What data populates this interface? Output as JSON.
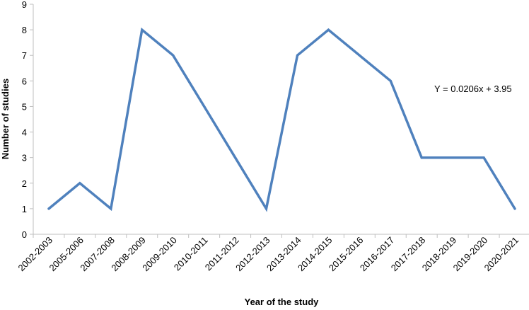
{
  "chart_data": {
    "type": "line",
    "title": "",
    "xlabel": "Year of the study",
    "ylabel": "Number of studies",
    "ylim": [
      0,
      9
    ],
    "yticks": [
      0,
      1,
      2,
      3,
      4,
      5,
      6,
      7,
      8,
      9
    ],
    "grid": false,
    "legend": "none",
    "categories": [
      "2002-2003",
      "2005-2006",
      "2007-2008",
      "2008-2009",
      "2009-2010",
      "2010-2011",
      "2011-2012",
      "2012-2013",
      "2013-2014",
      "2014-2015",
      "2015-2016",
      "2016-2017",
      "2017-2018",
      "2018-2019",
      "2019-2020",
      "2020-2021"
    ],
    "series": [
      {
        "values": [
          1,
          2,
          1,
          8,
          7,
          5,
          3,
          1,
          7,
          8,
          7,
          6,
          3,
          3,
          3,
          1
        ],
        "color": "#4f81bd"
      }
    ],
    "annotations": [
      {
        "text": "Y = 0.0206x + 3.95"
      }
    ],
    "axis_color": "#bfbfbf"
  }
}
